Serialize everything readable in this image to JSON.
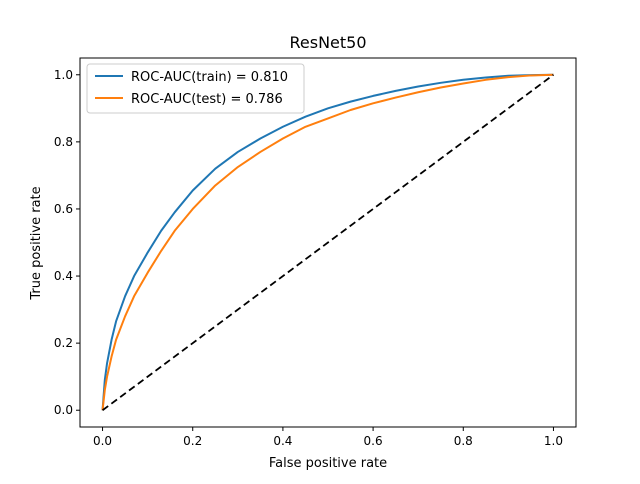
{
  "chart_data": {
    "type": "line",
    "title": "ResNet50",
    "xlabel": "False positive rate",
    "ylabel": "True positive rate",
    "xlim": [
      -0.05,
      1.05
    ],
    "ylim": [
      -0.05,
      1.05
    ],
    "xticks": [
      "0.0",
      "0.2",
      "0.4",
      "0.6",
      "0.8",
      "1.0"
    ],
    "yticks": [
      "0.0",
      "0.2",
      "0.4",
      "0.6",
      "0.8",
      "1.0"
    ],
    "grid": false,
    "legend_position": "top-left",
    "series": [
      {
        "name": "ROC-AUC(train) = 0.810",
        "color": "#1f77b4",
        "style": "solid",
        "x": [
          0,
          0.005,
          0.01,
          0.02,
          0.03,
          0.05,
          0.07,
          0.1,
          0.13,
          0.16,
          0.2,
          0.25,
          0.3,
          0.35,
          0.4,
          0.45,
          0.5,
          0.55,
          0.6,
          0.65,
          0.7,
          0.75,
          0.8,
          0.85,
          0.9,
          0.95,
          1.0
        ],
        "y": [
          0,
          0.09,
          0.14,
          0.21,
          0.265,
          0.34,
          0.4,
          0.47,
          0.535,
          0.59,
          0.655,
          0.72,
          0.77,
          0.81,
          0.845,
          0.875,
          0.9,
          0.92,
          0.937,
          0.952,
          0.965,
          0.976,
          0.985,
          0.992,
          0.997,
          0.999,
          1.0
        ]
      },
      {
        "name": "ROC-AUC(test) = 0.786",
        "color": "#ff7f0e",
        "style": "solid",
        "x": [
          0,
          0.005,
          0.01,
          0.02,
          0.03,
          0.05,
          0.07,
          0.1,
          0.13,
          0.16,
          0.2,
          0.25,
          0.3,
          0.35,
          0.4,
          0.45,
          0.5,
          0.55,
          0.6,
          0.65,
          0.7,
          0.75,
          0.8,
          0.85,
          0.9,
          0.95,
          1.0
        ],
        "y": [
          0,
          0.06,
          0.1,
          0.16,
          0.21,
          0.28,
          0.34,
          0.41,
          0.475,
          0.535,
          0.6,
          0.67,
          0.725,
          0.77,
          0.81,
          0.845,
          0.87,
          0.895,
          0.915,
          0.932,
          0.948,
          0.962,
          0.974,
          0.985,
          0.993,
          0.998,
          1.0
        ]
      },
      {
        "name": "",
        "color": "#000000",
        "style": "dashed",
        "x": [
          0,
          1
        ],
        "y": [
          0,
          1
        ]
      }
    ],
    "legend": [
      {
        "label": "ROC-AUC(train) = 0.810",
        "color": "#1f77b4"
      },
      {
        "label": "ROC-AUC(test) = 0.786",
        "color": "#ff7f0e"
      }
    ]
  }
}
